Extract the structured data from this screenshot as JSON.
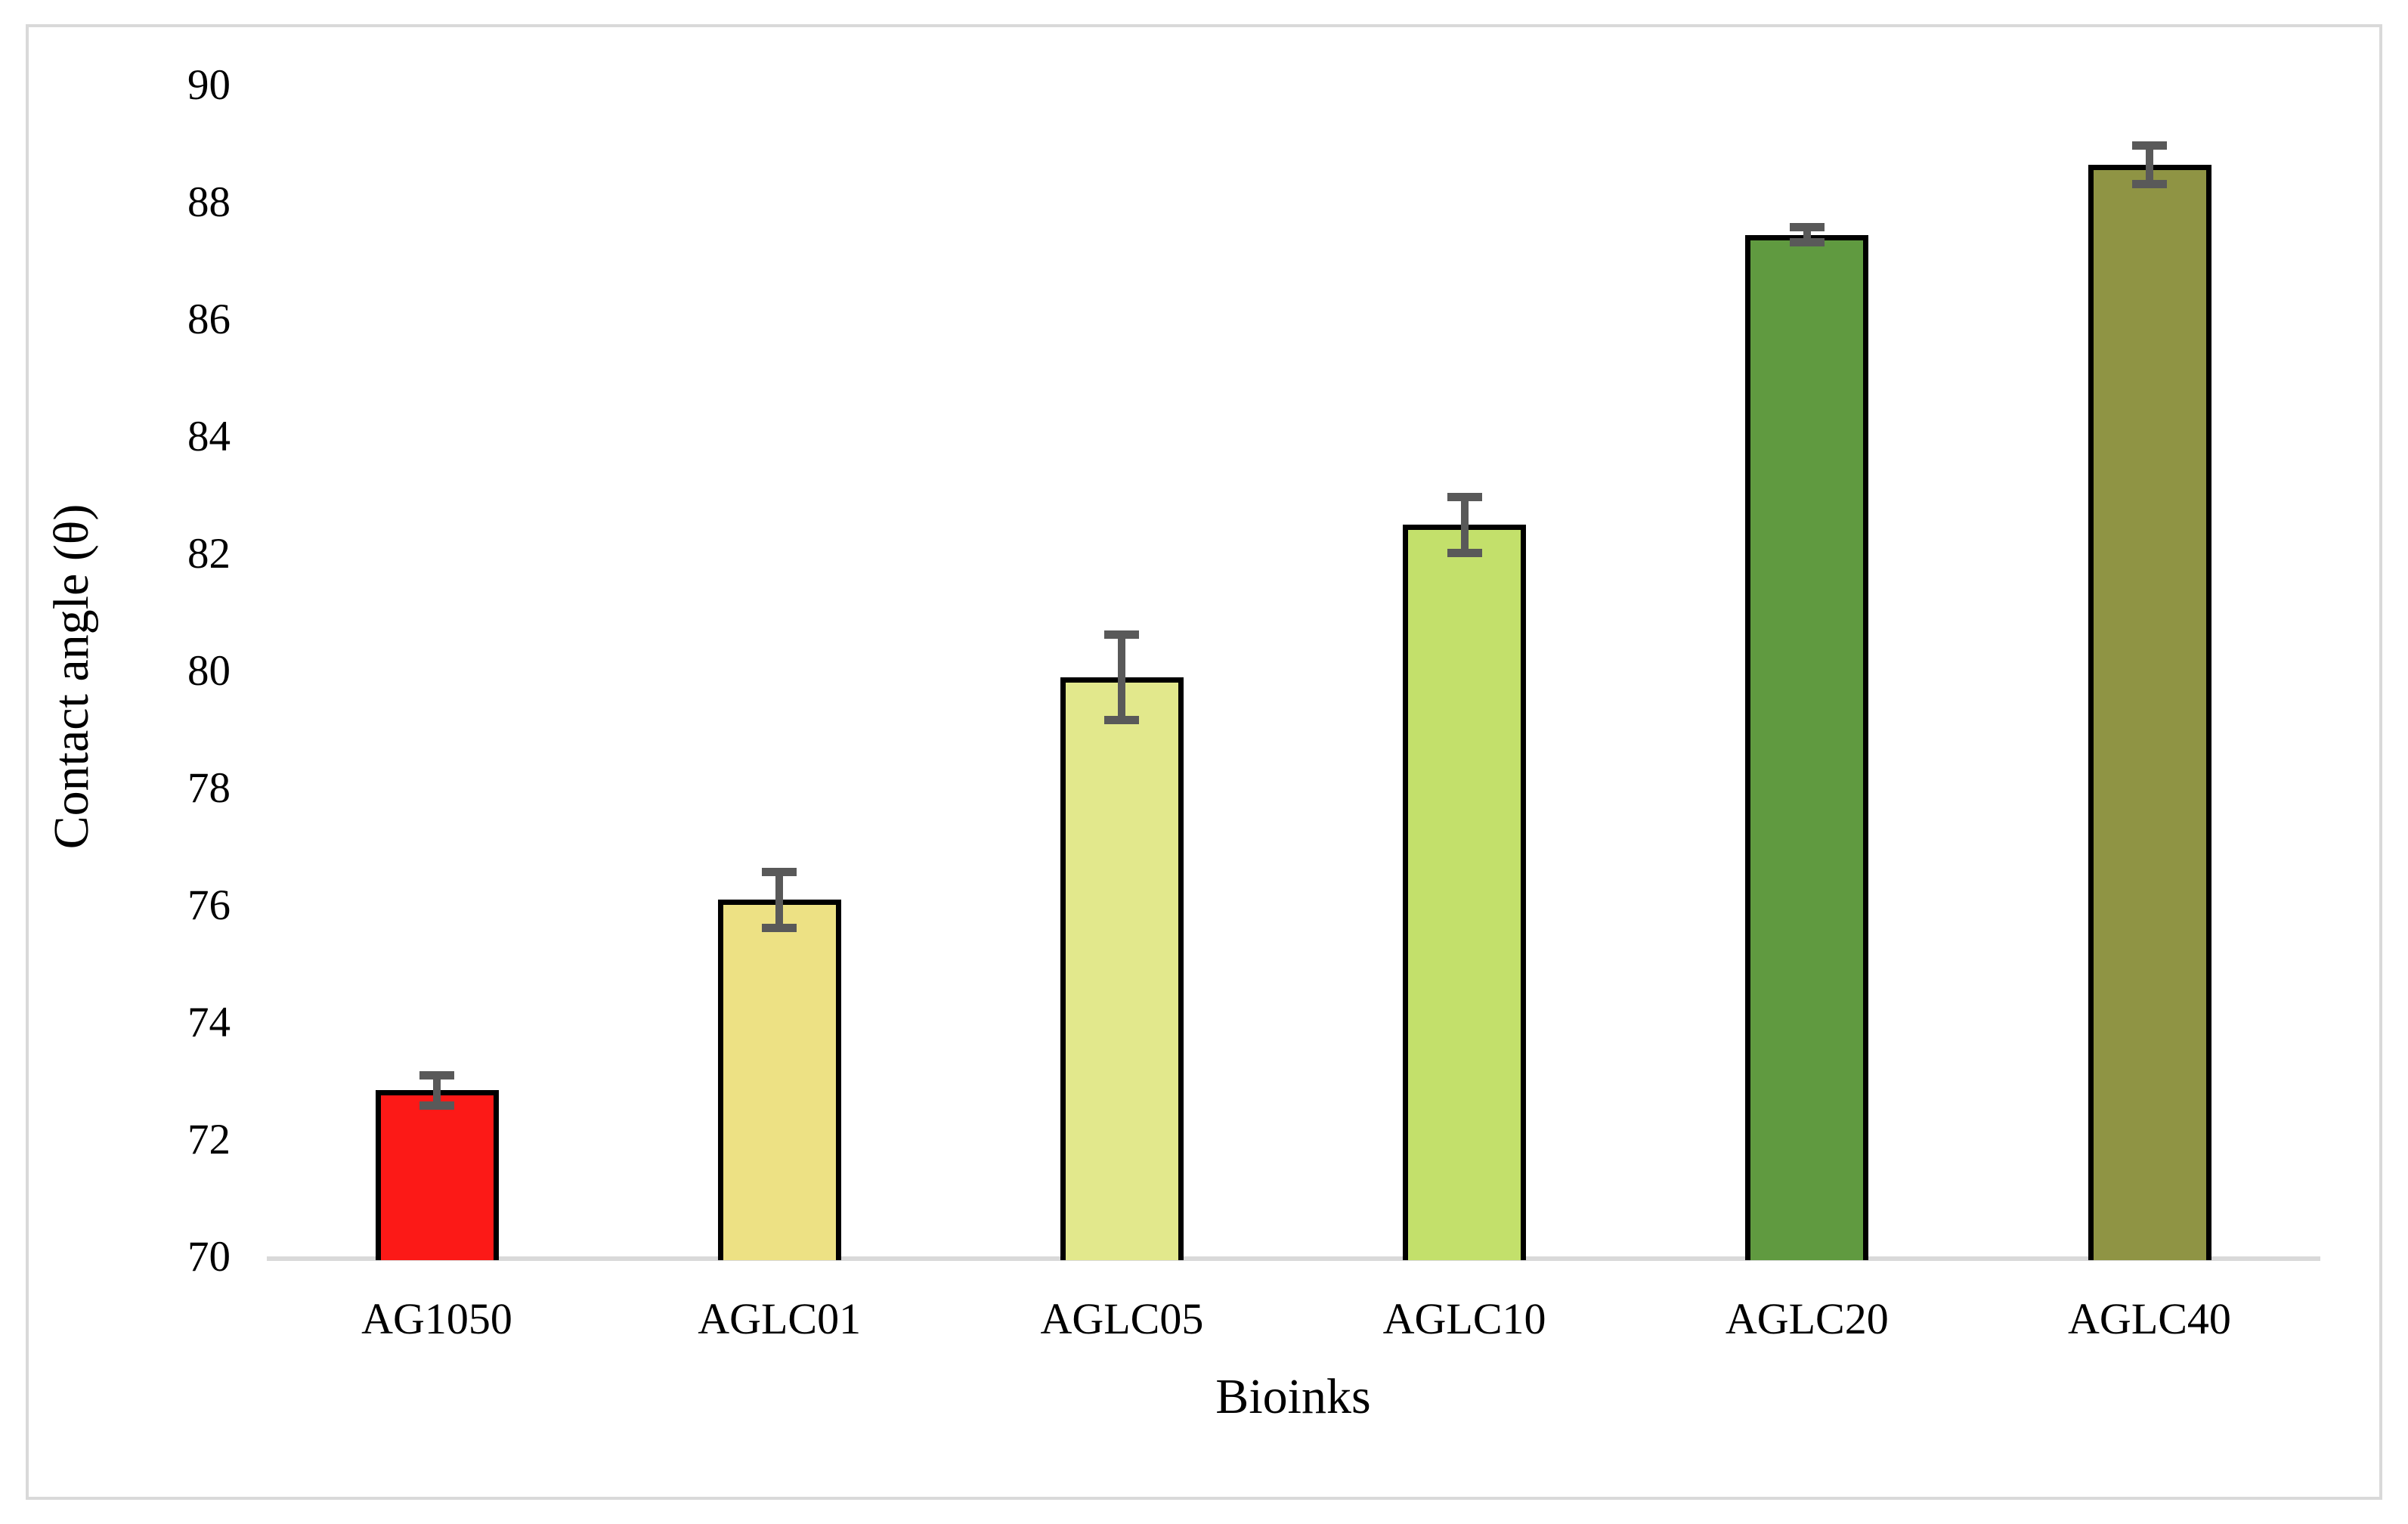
{
  "figure": {
    "background_color": "#ffffff",
    "frame_color": "#d9d9d9"
  },
  "chart_data": {
    "type": "bar",
    "title": "",
    "xlabel": "Bioinks",
    "ylabel": "Contact angle (θ)",
    "ylim": [
      70,
      90
    ],
    "yticks": [
      70,
      72,
      74,
      76,
      78,
      80,
      82,
      84,
      86,
      88,
      90
    ],
    "categories": [
      "AG1050",
      "AGLC01",
      "AGLC05",
      "AGLC10",
      "AGLC20",
      "AGLC40"
    ],
    "values": [
      72.85,
      76.1,
      79.9,
      82.5,
      87.45,
      88.65
    ],
    "error_bars": [
      0.33,
      0.55,
      0.8,
      0.55,
      0.2,
      0.4
    ],
    "bar_colors": [
      "#fc1917",
      "#ede184",
      "#e2e88c",
      "#c3e06b",
      "#609a40",
      "#8f9444"
    ],
    "bar_border_color": "#000000",
    "error_bar_color": "#595959",
    "axis_line_color": "#d9d9d9",
    "grid": false,
    "legend": null
  }
}
